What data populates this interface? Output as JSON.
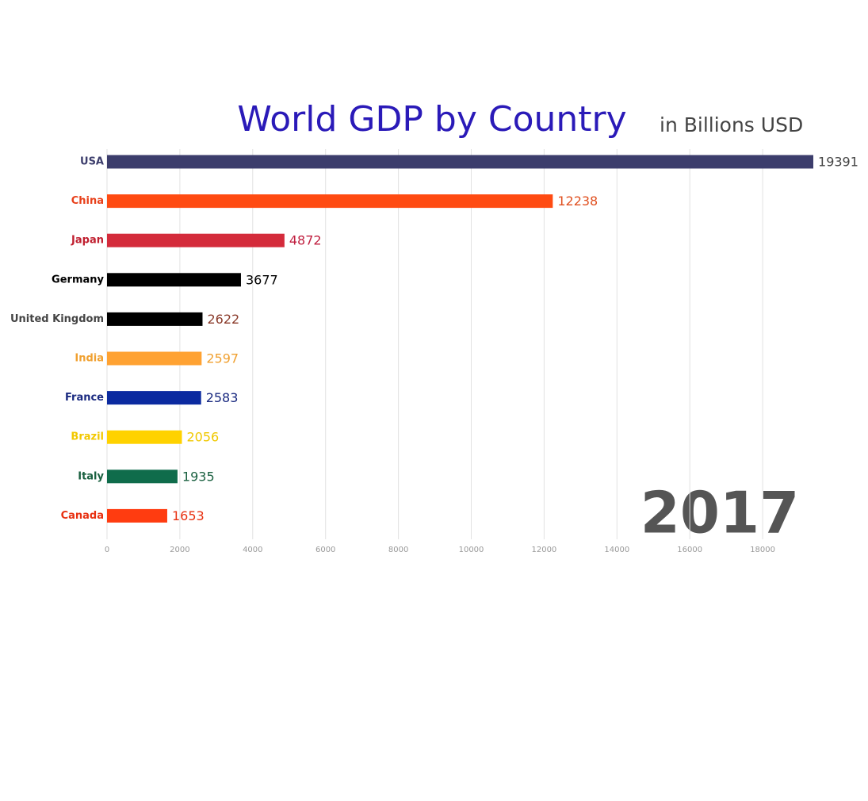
{
  "chart_data": {
    "type": "hbar",
    "title": "World GDP by Country",
    "subtitle": "in Billions USD",
    "year": "2017",
    "categories": [
      "USA",
      "China",
      "Japan",
      "Germany",
      "United Kingdom",
      "India",
      "France",
      "Brazil",
      "Italy",
      "Canada"
    ],
    "values": [
      19391,
      12238,
      4872,
      3677,
      2622,
      2597,
      2583,
      2056,
      1935,
      1653
    ],
    "colors": [
      "#3c3d6c",
      "#ff4b12",
      "#d42b3b",
      "#000000",
      "#000000",
      "#ffa232",
      "#0b2aa0",
      "#ffd200",
      "#0f6c4b",
      "#ff3c10"
    ],
    "label_colors": [
      "#3c3d6c",
      "#e8401a",
      "#c02030",
      "#000000",
      "#444444",
      "#f0a030",
      "#1a2a80",
      "#f2c800",
      "#1a6040",
      "#e83010"
    ],
    "value_label_colors": [
      "#444444",
      "#e05020",
      "#c02040",
      "#000000",
      "#8a3a2a",
      "#f0a030",
      "#1a2a80",
      "#f0c800",
      "#1a6040",
      "#e83010"
    ],
    "xlim": [
      0,
      20000
    ],
    "xticks": [
      0,
      2000,
      4000,
      6000,
      8000,
      10000,
      12000,
      14000,
      16000,
      18000
    ],
    "grid": true
  }
}
